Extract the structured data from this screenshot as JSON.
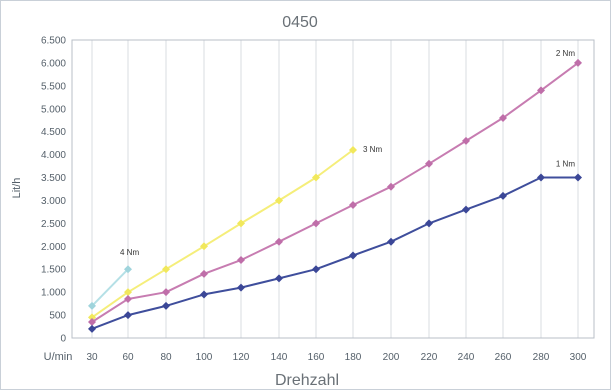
{
  "chart_data": {
    "type": "line",
    "title": "0450",
    "xlabel": "Drehzahl",
    "x_unit_label": "U/min",
    "ylabel": "Lit/h",
    "x_ticks": [
      30,
      60,
      80,
      100,
      120,
      140,
      160,
      180,
      200,
      220,
      240,
      260,
      280,
      300
    ],
    "x_tick_labels": [
      "30",
      "60",
      "80",
      "100",
      "120",
      "140",
      "160",
      "180",
      "200",
      "220",
      "240",
      "260",
      "280",
      "300"
    ],
    "y_ticks": [
      0,
      500,
      1000,
      1500,
      2000,
      2500,
      3000,
      3500,
      4000,
      4500,
      5000,
      5500,
      6000,
      6500
    ],
    "y_tick_labels": [
      "0",
      "500",
      "1.000",
      "1.500",
      "2.000",
      "2.500",
      "3.000",
      "3.500",
      "4.000",
      "4.500",
      "5.000",
      "5.500",
      "6.000",
      "6.500"
    ],
    "ylim": [
      0,
      6500
    ],
    "grid": "vertical",
    "series": [
      {
        "name": "4 Nm",
        "color": "#b5e0e6",
        "marker_color": "#9fd4dc",
        "x": [
          30,
          60
        ],
        "y": [
          700,
          1500
        ]
      },
      {
        "name": "3 Nm",
        "color": "#f5ee7a",
        "marker_color": "#f1e85c",
        "x": [
          30,
          60,
          80,
          100,
          120,
          140,
          160,
          180
        ],
        "y": [
          450,
          1000,
          1500,
          2000,
          2500,
          3000,
          3500,
          4100
        ]
      },
      {
        "name": "2 Nm",
        "color": "#c77cb1",
        "marker_color": "#bf6ea9",
        "x": [
          30,
          60,
          80,
          100,
          120,
          140,
          160,
          180,
          200,
          220,
          240,
          260,
          280,
          300
        ],
        "y": [
          350,
          850,
          1000,
          1400,
          1700,
          2100,
          2500,
          2900,
          3300,
          3800,
          4300,
          4800,
          5400,
          6000
        ]
      },
      {
        "name": "1 Nm",
        "color": "#3f4e9c",
        "marker_color": "#3b4797",
        "x": [
          30,
          60,
          80,
          100,
          120,
          140,
          160,
          180,
          200,
          220,
          240,
          260,
          280,
          300
        ],
        "y": [
          200,
          500,
          700,
          950,
          1100,
          1300,
          1500,
          1800,
          2100,
          2500,
          2800,
          3100,
          3500,
          3500
        ]
      }
    ],
    "legend": "none"
  }
}
